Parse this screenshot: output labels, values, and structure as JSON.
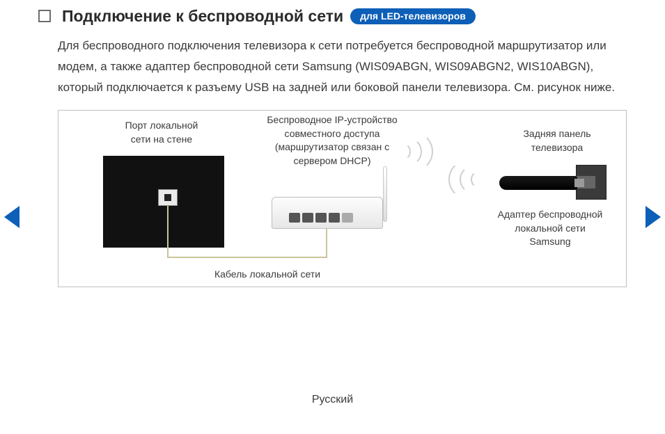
{
  "header": {
    "title": "Подключение к беспроводной сети",
    "badge": "для LED-телевизоров"
  },
  "body_text": "Для беспроводного подключения телевизора к сети потребуется беспроводной маршрутизатор или модем, а также адаптер беспроводной сети Samsung (WIS09ABGN, WIS09ABGN2, WIS10ABGN), который подключается к разъему USB на задней или боковой панели телевизора. См. рисунок ниже.",
  "diagram": {
    "wall_port_label": "Порт локальной\nсети на стене",
    "router_label": "Беспроводное IP-устройство\nсовместного доступа\n(маршрутизатор связан с\nсервером DHCP)",
    "tv_back_label": "Задняя панель\nтелевизора",
    "adapter_label": "Адаптер беспроводной\nлокальной сети\nSamsung",
    "cable_label": "Кабель локальной сети"
  },
  "footer": {
    "language": "Русский"
  },
  "colors": {
    "accent": "#0d5fb8",
    "text": "#3a3a3a",
    "border": "#c0c0c0",
    "cable": "#c9c59a"
  }
}
